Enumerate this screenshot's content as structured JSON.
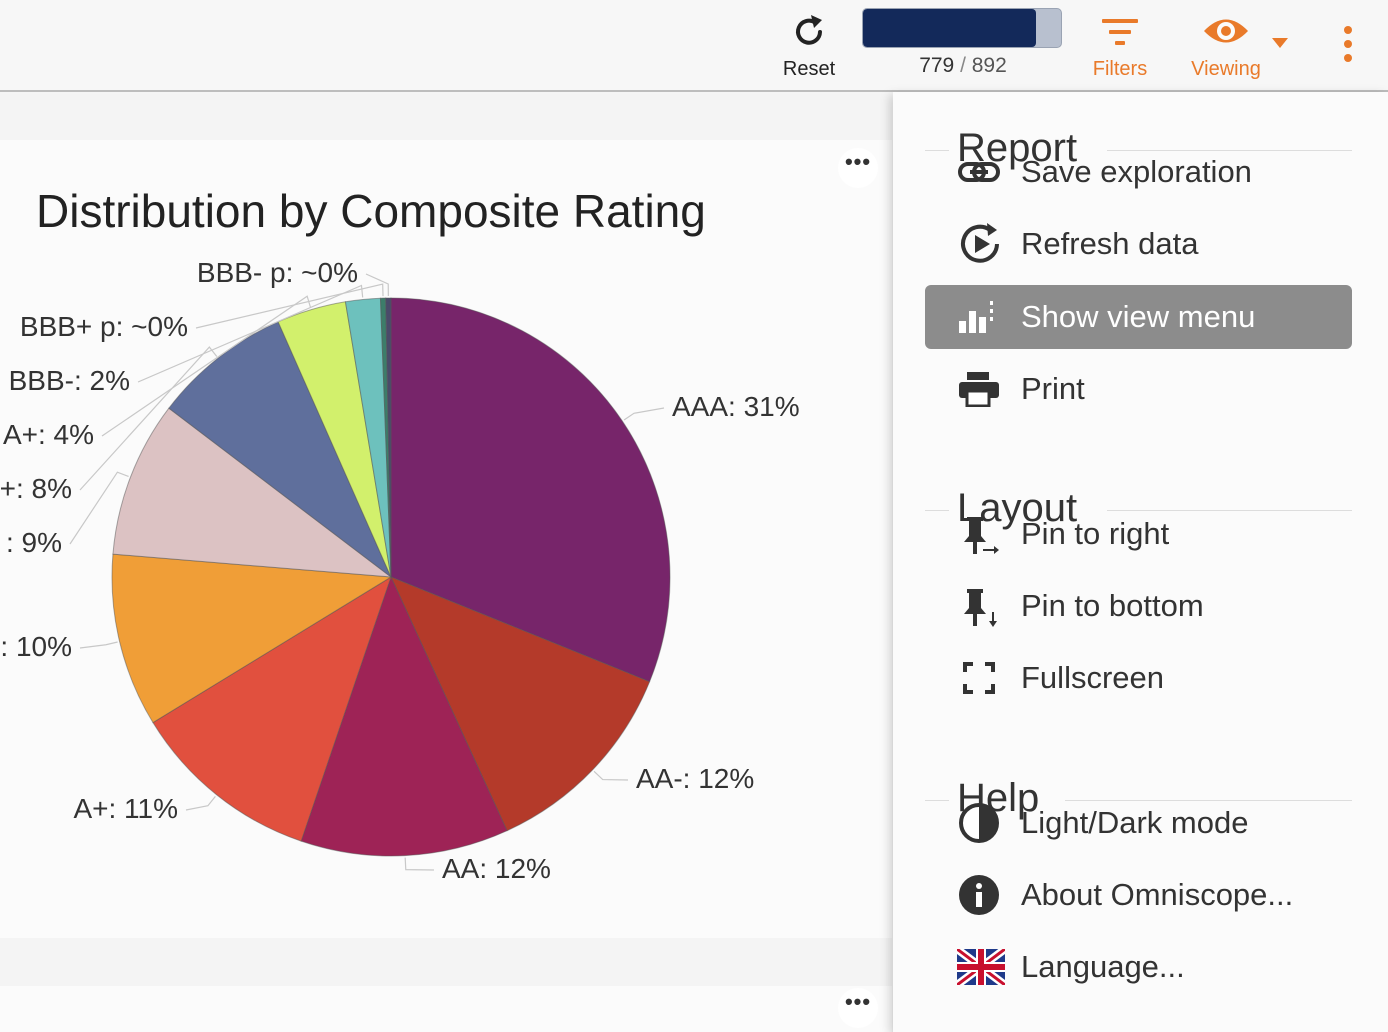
{
  "toolbar": {
    "reset_label": "Reset",
    "record_count": 779,
    "record_total": 892,
    "filters_label": "Filters",
    "viewing_label": "Viewing",
    "accent_color": "#e97a2a",
    "progress_color": "#13295a"
  },
  "chart_data": {
    "type": "pie",
    "title": "Distribution by Composite Rating",
    "slices": [
      {
        "label": "AAA: 31%",
        "value": 31,
        "color": "#77256a"
      },
      {
        "label": "AA-: 12%",
        "value": 12,
        "color": "#b43a2a"
      },
      {
        "label": "AA: 12%",
        "value": 12,
        "color": "#9e2356"
      },
      {
        "label": "A+: 11%",
        "value": 11,
        "color": "#e1503e"
      },
      {
        "label": ": 10%",
        "value": 10,
        "color": "#f09e37"
      },
      {
        "label": ": 9%",
        "value": 9,
        "color": "#dcc2c3"
      },
      {
        "label": "+: 8%",
        "value": 8,
        "color": "#5f6f9c"
      },
      {
        "label": "A+: 4%",
        "value": 4,
        "color": "#d2f06c"
      },
      {
        "label": "BBB-: 2%",
        "value": 2,
        "color": "#6dc1bd"
      },
      {
        "label": "BBB+ p: ~0%",
        "value": 0.3,
        "color": "#3c7d6a"
      },
      {
        "label": "BBB- p: ~0%",
        "value": 0.3,
        "color": "#4a4a6a"
      }
    ]
  },
  "menu": {
    "sections": [
      {
        "title": "Report",
        "items": [
          {
            "label": "Save exploration",
            "icon": "link-icon"
          },
          {
            "label": "Refresh data",
            "icon": "refresh-play-icon"
          },
          {
            "label": "Show view menu",
            "icon": "bar-chart-icon",
            "active": true
          },
          {
            "label": "Print",
            "icon": "printer-icon"
          }
        ]
      },
      {
        "title": "Layout",
        "items": [
          {
            "label": "Pin to right",
            "icon": "pin-right-icon"
          },
          {
            "label": "Pin to bottom",
            "icon": "pin-bottom-icon"
          },
          {
            "label": "Fullscreen",
            "icon": "fullscreen-icon"
          }
        ]
      },
      {
        "title": "Help",
        "items": [
          {
            "label": "Light/Dark mode",
            "icon": "contrast-icon"
          },
          {
            "label": "About Omniscope...",
            "icon": "info-icon"
          },
          {
            "label": "Language...",
            "icon": "uk-flag-icon"
          }
        ]
      }
    ]
  }
}
